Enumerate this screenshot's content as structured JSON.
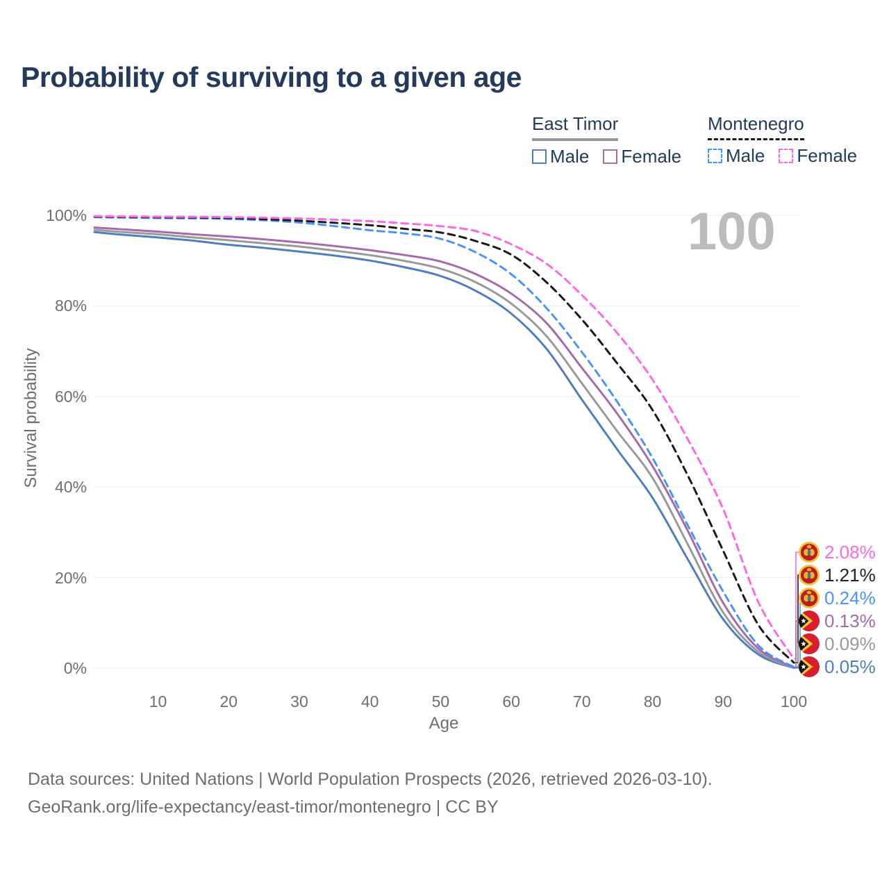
{
  "title": "Probability of surviving to a given age",
  "watermark": "100",
  "legend": {
    "groups": [
      {
        "name": "East Timor",
        "line_style": "solid",
        "underline_color": "#999999",
        "items": [
          {
            "label": "Male",
            "color": "#4d7ebe",
            "dashed": false
          },
          {
            "label": "Female",
            "color": "#a56bab",
            "dashed": false
          }
        ]
      },
      {
        "name": "Montenegro",
        "line_style": "dashed",
        "underline_color": "#1a1a1a",
        "items": [
          {
            "label": "Male",
            "color": "#4b93fb",
            "dashed": true
          },
          {
            "label": "Female",
            "color": "#fc6ae0",
            "dashed": true
          }
        ]
      }
    ]
  },
  "axes": {
    "y": {
      "label": "Survival probability",
      "ticks": [
        "0%",
        "20%",
        "40%",
        "60%",
        "80%",
        "100%"
      ],
      "tick_values": [
        0,
        20,
        40,
        60,
        80,
        100
      ]
    },
    "x": {
      "label": "Age",
      "ticks": [
        10,
        20,
        30,
        40,
        50,
        60,
        70,
        80,
        90,
        100
      ]
    }
  },
  "chart_data": {
    "type": "line",
    "title": "Probability of surviving to a given age",
    "xlabel": "Age",
    "ylabel": "Survival probability",
    "xlim": [
      1,
      100
    ],
    "ylim": [
      0,
      100
    ],
    "grid": "horizontal",
    "series": [
      {
        "name": "East Timor Male",
        "country": "East Timor",
        "sex": "Male",
        "color": "#4d7ebe",
        "dash": false,
        "x": [
          1,
          5,
          10,
          15,
          20,
          25,
          30,
          35,
          40,
          45,
          50,
          55,
          60,
          65,
          70,
          75,
          80,
          85,
          90,
          95,
          100
        ],
        "y": [
          96.3,
          95.7,
          95.1,
          94.4,
          93.5,
          92.8,
          92.0,
          91.1,
          90.0,
          88.5,
          86.6,
          83.3,
          78.3,
          70.5,
          59.3,
          48.3,
          37.6,
          24.0,
          10.8,
          3.0,
          0.05
        ]
      },
      {
        "name": "East Timor Both sexes",
        "country": "East Timor",
        "sex": "Both",
        "color": "#9a9a9a",
        "dash": false,
        "x": [
          1,
          5,
          10,
          15,
          20,
          25,
          30,
          35,
          40,
          45,
          50,
          55,
          60,
          65,
          70,
          75,
          80,
          85,
          90,
          95,
          100
        ],
        "y": [
          96.8,
          96.3,
          95.8,
          95.1,
          94.5,
          93.8,
          93.1,
          92.2,
          91.2,
          89.9,
          88.2,
          85.2,
          80.5,
          73.3,
          62.9,
          52.3,
          42.0,
          27.3,
          12.3,
          3.6,
          0.09
        ]
      },
      {
        "name": "East Timor Female",
        "country": "East Timor",
        "sex": "Female",
        "color": "#a56bab",
        "dash": false,
        "x": [
          1,
          5,
          10,
          15,
          20,
          25,
          30,
          35,
          40,
          45,
          50,
          55,
          60,
          65,
          70,
          75,
          80,
          85,
          90,
          95,
          100
        ],
        "y": [
          97.3,
          96.9,
          96.4,
          95.8,
          95.3,
          94.7,
          94.0,
          93.2,
          92.3,
          91.2,
          89.8,
          87.0,
          82.7,
          76.2,
          66.3,
          56.2,
          44.6,
          30.3,
          14.4,
          4.3,
          0.13
        ]
      },
      {
        "name": "Montenegro Male",
        "country": "Montenegro",
        "sex": "Male",
        "color": "#4b93fb",
        "dash": true,
        "x": [
          1,
          10,
          20,
          30,
          40,
          45,
          50,
          55,
          60,
          65,
          70,
          75,
          80,
          85,
          90,
          95,
          100
        ],
        "y": [
          99.6,
          99.4,
          99.2,
          98.4,
          96.7,
          96.0,
          94.8,
          91.8,
          87.0,
          79.5,
          69.8,
          58.8,
          46.4,
          31.5,
          16.9,
          5.0,
          0.24
        ]
      },
      {
        "name": "Montenegro Both sexes",
        "country": "Montenegro",
        "sex": "Both",
        "color": "#1a1a1a",
        "dash": true,
        "x": [
          1,
          10,
          20,
          30,
          40,
          45,
          50,
          55,
          60,
          65,
          70,
          75,
          80,
          85,
          90,
          95,
          100
        ],
        "y": [
          99.7,
          99.55,
          99.4,
          98.8,
          97.8,
          97.0,
          96.2,
          94.3,
          91.3,
          85.2,
          77.0,
          67.3,
          57.0,
          42.5,
          25.9,
          9.5,
          1.21
        ]
      },
      {
        "name": "Montenegro Female",
        "country": "Montenegro",
        "sex": "Female",
        "color": "#fc6ae0",
        "dash": true,
        "x": [
          1,
          10,
          20,
          30,
          40,
          45,
          50,
          55,
          60,
          65,
          70,
          75,
          80,
          85,
          90,
          95,
          100
        ],
        "y": [
          99.8,
          99.7,
          99.6,
          99.3,
          98.7,
          98.2,
          97.6,
          96.5,
          93.6,
          89.3,
          82.4,
          74.0,
          63.7,
          50.5,
          35.1,
          14.5,
          2.08
        ]
      }
    ],
    "end_labels": [
      {
        "value": "2.08%",
        "series": "Montenegro Female",
        "flag": "montenegro",
        "color": "#fc6ae0"
      },
      {
        "value": "1.21%",
        "series": "Montenegro Both sexes",
        "flag": "montenegro",
        "color": "#222222"
      },
      {
        "value": "0.24%",
        "series": "Montenegro Male",
        "flag": "montenegro",
        "color": "#4b93fb"
      },
      {
        "value": "0.13%",
        "series": "East Timor Female",
        "flag": "east-timor",
        "color": "#a56bab"
      },
      {
        "value": "0.09%",
        "series": "East Timor Both sexes",
        "flag": "east-timor",
        "color": "#999999"
      },
      {
        "value": "0.05%",
        "series": "East Timor Male",
        "flag": "east-timor",
        "color": "#4d7ebe"
      }
    ]
  },
  "footer": {
    "line1": "Data sources: United Nations | World Population Prospects (2026, retrieved 2026-03-10).",
    "line2": "GeoRank.org/life-expectancy/east-timor/montenegro | CC BY"
  }
}
